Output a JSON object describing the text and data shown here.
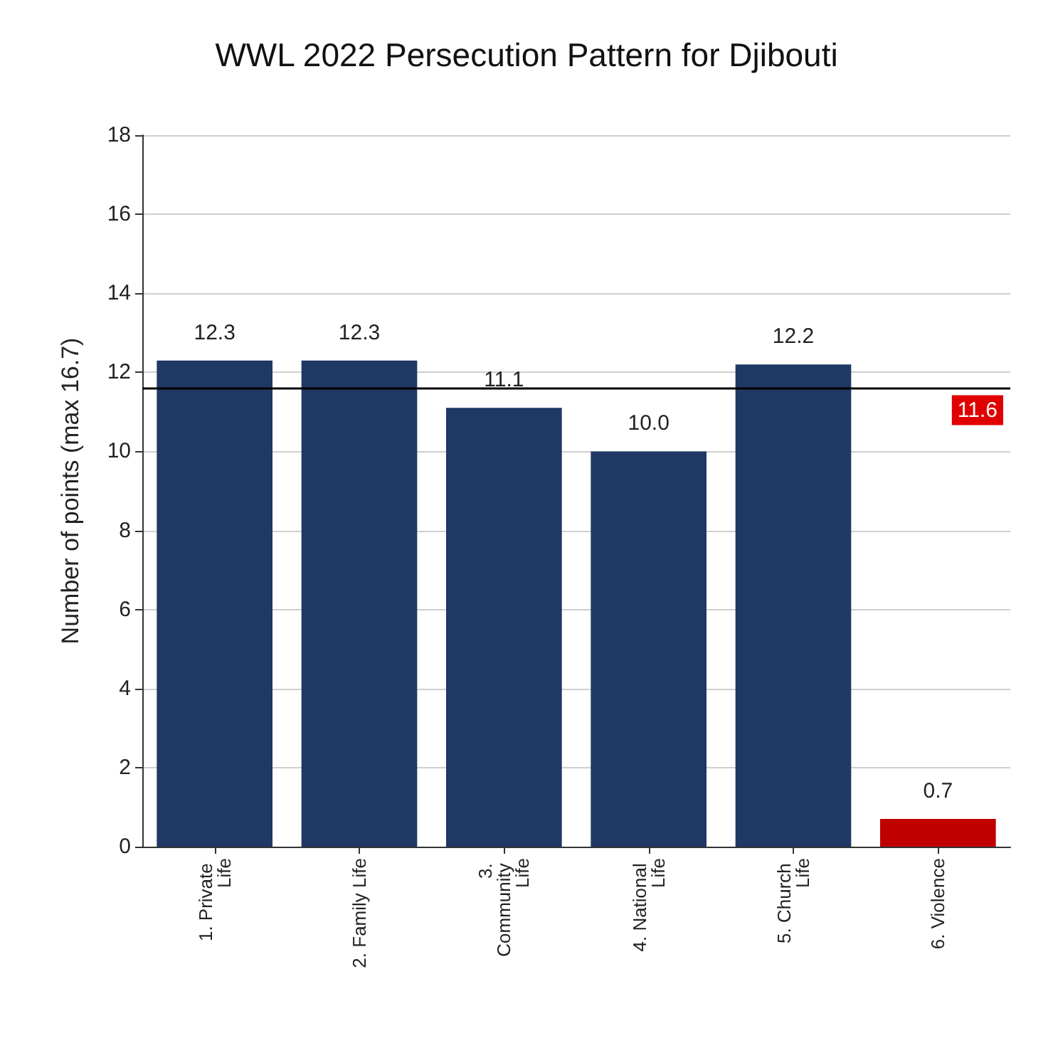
{
  "chart_data": {
    "type": "bar",
    "title": "WWL 2022 Persecution Pattern for Djibouti",
    "ylabel": "Number of points (max 16.7)",
    "categories": [
      "1. Private Life",
      "2. Family Life",
      "3. Community Life",
      "4. National Life",
      "5. Church Life",
      "6. Violence"
    ],
    "values": [
      12.3,
      12.3,
      11.1,
      10.0,
      12.2,
      0.7
    ],
    "colors": [
      "#1f3864",
      "#1f3864",
      "#1f3864",
      "#1f3864",
      "#1f3864",
      "#c00000"
    ],
    "ylim": [
      0,
      18
    ],
    "yticks": [
      0,
      2,
      4,
      6,
      8,
      10,
      12,
      14,
      16,
      18
    ],
    "grid": "y",
    "value_labels": [
      "12.3",
      "12.3",
      "11.1",
      "10.0",
      "12.2",
      "0.7"
    ],
    "ref_lines": [
      {
        "axis": "y",
        "value": 11.6,
        "label": "11.6",
        "color": "#000000"
      }
    ]
  }
}
